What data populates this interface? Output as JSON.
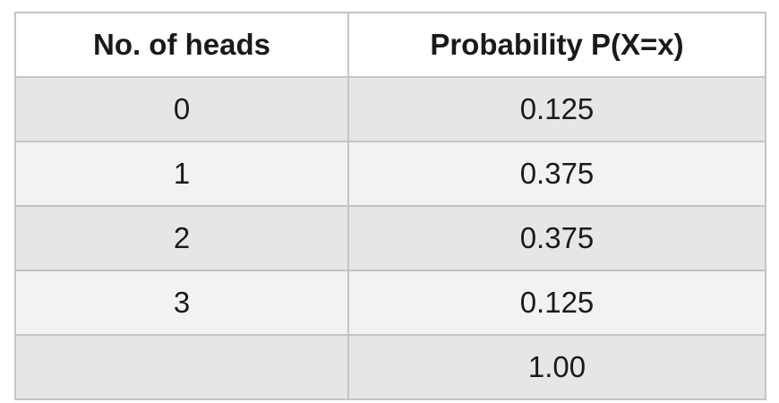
{
  "table": {
    "headers": [
      "No. of heads",
      "Probability P(X=x)"
    ],
    "rows": [
      [
        "0",
        "0.125"
      ],
      [
        "1",
        "0.375"
      ],
      [
        "2",
        "0.375"
      ],
      [
        "3",
        "0.125"
      ],
      [
        "",
        "1.00"
      ]
    ]
  },
  "colors": {
    "header_bg": "#ffffff",
    "row_shaded": "#e6e6e6",
    "row_light": "#f2f2f2",
    "border": "#c4c4c4"
  }
}
